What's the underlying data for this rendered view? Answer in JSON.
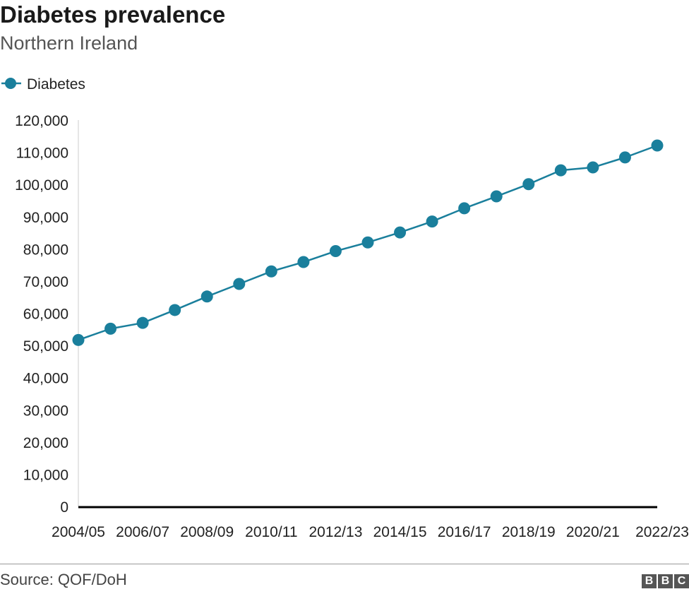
{
  "header": {
    "title": "Diabetes prevalence",
    "subtitle": "Northern Ireland"
  },
  "footer": {
    "source": "Source: QOF/DoH",
    "logo_letters": [
      "B",
      "B",
      "C"
    ]
  },
  "colors": {
    "series": "#1a7f9c",
    "axis": "#000000",
    "gridline": "#cccccc",
    "text": "#222222"
  },
  "chart_data": {
    "type": "line",
    "title": "Diabetes prevalence",
    "subtitle": "Northern Ireland",
    "xlabel": "",
    "ylabel": "",
    "ylim": [
      0,
      120000
    ],
    "y_ticks": [
      0,
      10000,
      20000,
      30000,
      40000,
      50000,
      60000,
      70000,
      80000,
      90000,
      100000,
      110000,
      120000
    ],
    "y_tick_labels": [
      "0",
      "10,000",
      "20,000",
      "30,000",
      "40,000",
      "50,000",
      "60,000",
      "70,000",
      "80,000",
      "90,000",
      "100,000",
      "110,000",
      "120,000"
    ],
    "x": [
      "2004/05",
      "2005/06",
      "2006/07",
      "2007/08",
      "2008/09",
      "2009/10",
      "2010/11",
      "2011/12",
      "2012/13",
      "2013/14",
      "2014/15",
      "2015/16",
      "2016/17",
      "2017/18",
      "2018/19",
      "2019/20",
      "2020/21",
      "2021/22",
      "2022/23"
    ],
    "x_tick_labels": [
      "2004/05",
      "2006/07",
      "2008/09",
      "2010/11",
      "2012/13",
      "2014/15",
      "2016/17",
      "2018/19",
      "2020/21",
      "2022/23"
    ],
    "series": [
      {
        "name": "Diabetes",
        "values": [
          51700,
          55200,
          57000,
          61000,
          65200,
          69100,
          73000,
          75900,
          79300,
          82000,
          85100,
          88500,
          92600,
          96300,
          100100,
          104400,
          105300,
          108400,
          112100
        ]
      }
    ],
    "grid": false,
    "legend_position": "top-left"
  }
}
